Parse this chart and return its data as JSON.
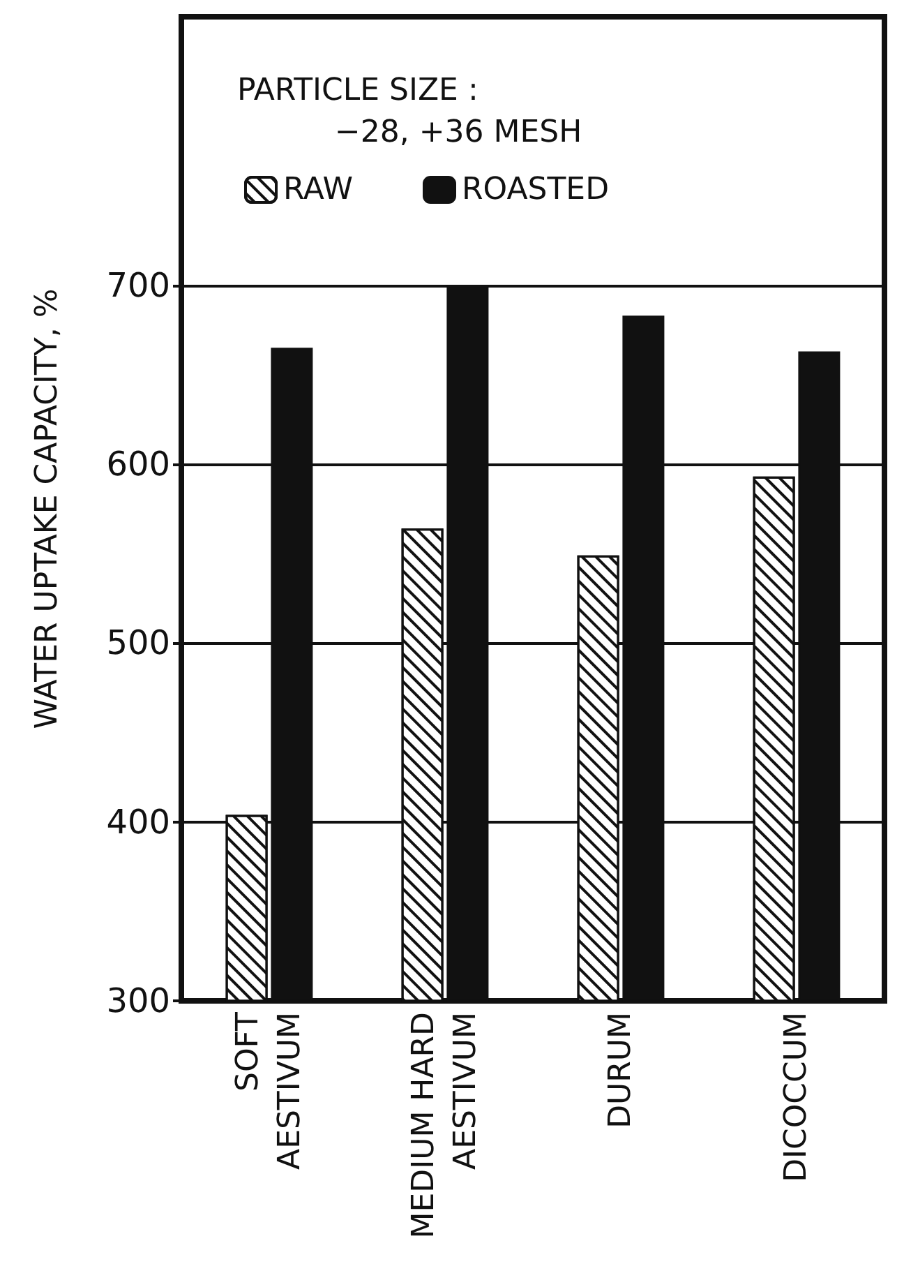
{
  "chart_data": {
    "type": "bar",
    "ylabel": "WATER UPTAKE CAPACITY, %",
    "annotations": [
      "PARTICLE SIZE : −28, +36 MESH"
    ],
    "categories": [
      "SOFT AESTIVUM",
      "MEDIUM HARD AESTIVUM",
      "DURUM",
      "DICOCCUM"
    ],
    "series": [
      {
        "name": "RAW",
        "color": "#ffffff",
        "values": [
          404,
          564,
          549,
          593
        ]
      },
      {
        "name": "ROASTED",
        "color": "#111111",
        "values": [
          665,
          700,
          683,
          663
        ]
      }
    ],
    "ylim": [
      300,
      850
    ],
    "yticks": [
      300,
      400,
      500,
      600,
      700
    ],
    "grid": "y",
    "legend": "top left"
  }
}
